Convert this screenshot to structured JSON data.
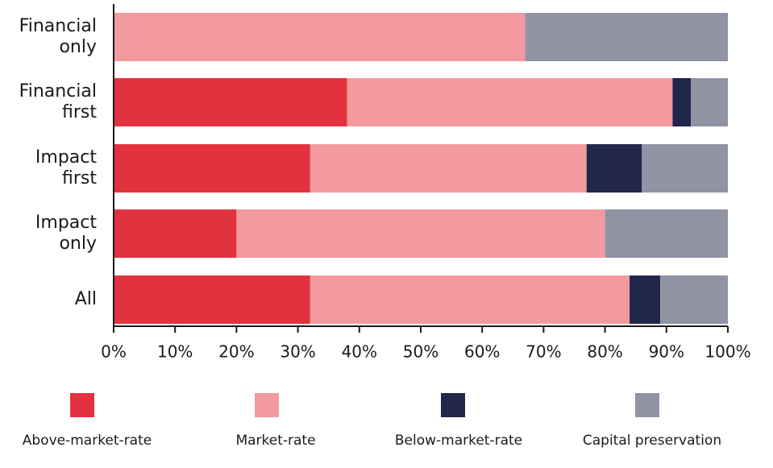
{
  "chart_data": {
    "type": "stacked-barh",
    "categories": [
      "Financial only",
      "Financial first",
      "Impact first",
      "Impact only",
      "All"
    ],
    "series": [
      {
        "name": "Above-market-rate",
        "color": "#e3323f",
        "values": [
          0,
          38,
          32,
          20,
          32
        ]
      },
      {
        "name": "Market-rate",
        "color": "#f29a9e",
        "values": [
          67,
          53,
          45,
          60,
          52
        ]
      },
      {
        "name": "Below-market-rate",
        "color": "#21264b",
        "values": [
          0,
          3,
          9,
          0,
          5
        ]
      },
      {
        "name": "Capital preservation",
        "color": "#9093a4",
        "values": [
          33,
          6,
          14,
          20,
          11
        ]
      }
    ],
    "xlim": [
      0,
      100
    ],
    "xticks": [
      {
        "value": 0,
        "label": "0%"
      },
      {
        "value": 10,
        "label": "10%"
      },
      {
        "value": 20,
        "label": "20%"
      },
      {
        "value": 30,
        "label": "30%"
      },
      {
        "value": 40,
        "label": "40%"
      },
      {
        "value": 50,
        "label": "50%"
      },
      {
        "value": 60,
        "label": "60%"
      },
      {
        "value": 70,
        "label": "70%"
      },
      {
        "value": 80,
        "label": "80%"
      },
      {
        "value": 90,
        "label": "90%"
      },
      {
        "value": 100,
        "label": "100%"
      }
    ],
    "legend": "bottom"
  }
}
